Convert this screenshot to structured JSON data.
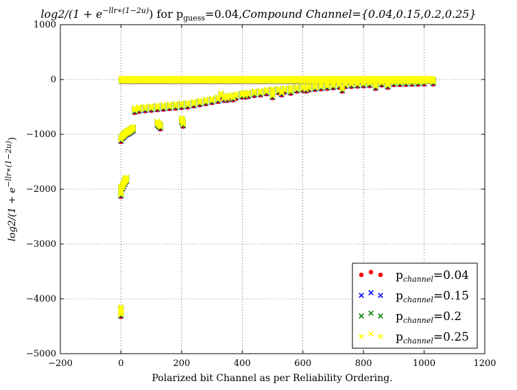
{
  "chart_data": {
    "type": "scatter",
    "title": {
      "prefix": "log2/(1 + e",
      "prefix_sup": "−llr∗(1−2u)",
      "middle": ") for p",
      "middle_sub": "guess",
      "middle_rest": "=0.04,",
      "suffix": "Compound Channel={0.04,0.15,0.2,0.25}"
    },
    "xlabel": "Polarized bit Channel as per Reliability Ordering.",
    "ylabel": {
      "prefix": "log2/(1 + e",
      "sup": "−llr∗(1−2u)",
      "suffix": ")"
    },
    "xlim": [
      -200,
      1200
    ],
    "ylim": [
      -5000,
      1000
    ],
    "xticks": [
      -200,
      0,
      200,
      400,
      600,
      800,
      1000,
      1200
    ],
    "yticks": [
      1000,
      0,
      -1000,
      -2000,
      -3000,
      -4000,
      -5000
    ],
    "xtick_labels": [
      "−200",
      "0",
      "200",
      "400",
      "600",
      "800",
      "1000",
      "1200"
    ],
    "ytick_labels": [
      "1000",
      "0",
      "−1000",
      "−2000",
      "−3000",
      "−4000",
      "−5000"
    ],
    "grid": true,
    "legend_position": "lower-right",
    "series": [
      {
        "name_base": "p",
        "name_sub": "channel",
        "name_value": "=0.04",
        "marker": "circle",
        "color": "#ff0000",
        "offset": -35
      },
      {
        "name_base": "p",
        "name_sub": "channel",
        "name_value": "=0.15",
        "marker": "x",
        "color": "#0000ff",
        "offset": -22
      },
      {
        "name_base": "p",
        "name_sub": "channel",
        "name_value": "=0.2",
        "marker": "x",
        "color": "#008000",
        "offset": -12
      },
      {
        "name_base": "p",
        "name_sub": "channel",
        "name_value": "=0.25",
        "marker": "x",
        "color": "#ffff00",
        "offset": 0
      }
    ],
    "base_points": [
      [
        0,
        -4150
      ],
      [
        0,
        -4180
      ],
      [
        0,
        -4200
      ],
      [
        0,
        -4220
      ],
      [
        0,
        -4240
      ],
      [
        0,
        -1950
      ],
      [
        0,
        -2000
      ],
      [
        0,
        -2050
      ],
      [
        5,
        -1920
      ],
      [
        8,
        -1880
      ],
      [
        12,
        -1840
      ],
      [
        15,
        -1800
      ],
      [
        18,
        -1780
      ],
      [
        0,
        -1050
      ],
      [
        5,
        -1000
      ],
      [
        10,
        -980
      ],
      [
        15,
        -950
      ],
      [
        20,
        -930
      ],
      [
        25,
        -920
      ],
      [
        30,
        -900
      ],
      [
        35,
        -880
      ],
      [
        40,
        -860
      ],
      [
        45,
        -520
      ],
      [
        60,
        -500
      ],
      [
        80,
        -490
      ],
      [
        100,
        -480
      ],
      [
        120,
        -470
      ],
      [
        140,
        -460
      ],
      [
        160,
        -450
      ],
      [
        180,
        -440
      ],
      [
        200,
        -430
      ],
      [
        220,
        -420
      ],
      [
        240,
        -400
      ],
      [
        260,
        -380
      ],
      [
        280,
        -360
      ],
      [
        300,
        -340
      ],
      [
        320,
        -320
      ],
      [
        340,
        -300
      ],
      [
        360,
        -280
      ],
      [
        380,
        -260
      ],
      [
        400,
        -240
      ],
      [
        420,
        -230
      ],
      [
        440,
        -210
      ],
      [
        460,
        -200
      ],
      [
        480,
        -180
      ],
      [
        500,
        -170
      ],
      [
        520,
        -160
      ],
      [
        540,
        -150
      ],
      [
        560,
        -140
      ],
      [
        580,
        -130
      ],
      [
        600,
        -120
      ],
      [
        620,
        -110
      ],
      [
        640,
        -100
      ],
      [
        660,
        -90
      ],
      [
        680,
        -80
      ],
      [
        700,
        -70
      ],
      [
        720,
        -60
      ],
      [
        740,
        -50
      ],
      [
        760,
        -45
      ],
      [
        780,
        -40
      ],
      [
        800,
        -35
      ],
      [
        820,
        -30
      ],
      [
        840,
        -25
      ],
      [
        860,
        -20
      ],
      [
        880,
        -15
      ],
      [
        900,
        -12
      ],
      [
        920,
        -10
      ],
      [
        940,
        -8
      ],
      [
        960,
        -6
      ],
      [
        980,
        -4
      ],
      [
        1000,
        -2
      ],
      [
        1030,
        0
      ],
      [
        120,
        -760
      ],
      [
        125,
        -790
      ],
      [
        130,
        -820
      ],
      [
        200,
        -700
      ],
      [
        203,
        -730
      ],
      [
        205,
        -770
      ],
      [
        330,
        -250
      ],
      [
        350,
        -300
      ],
      [
        370,
        -290
      ],
      [
        410,
        -240
      ],
      [
        500,
        -250
      ],
      [
        530,
        -200
      ],
      [
        560,
        -170
      ],
      [
        610,
        -130
      ],
      [
        640,
        -100
      ],
      [
        730,
        -130
      ],
      [
        840,
        -80
      ],
      [
        880,
        -60
      ]
    ],
    "band": {
      "x_start": 0,
      "x_end": 1030,
      "y_top": 35,
      "y_bottom": -35
    }
  }
}
